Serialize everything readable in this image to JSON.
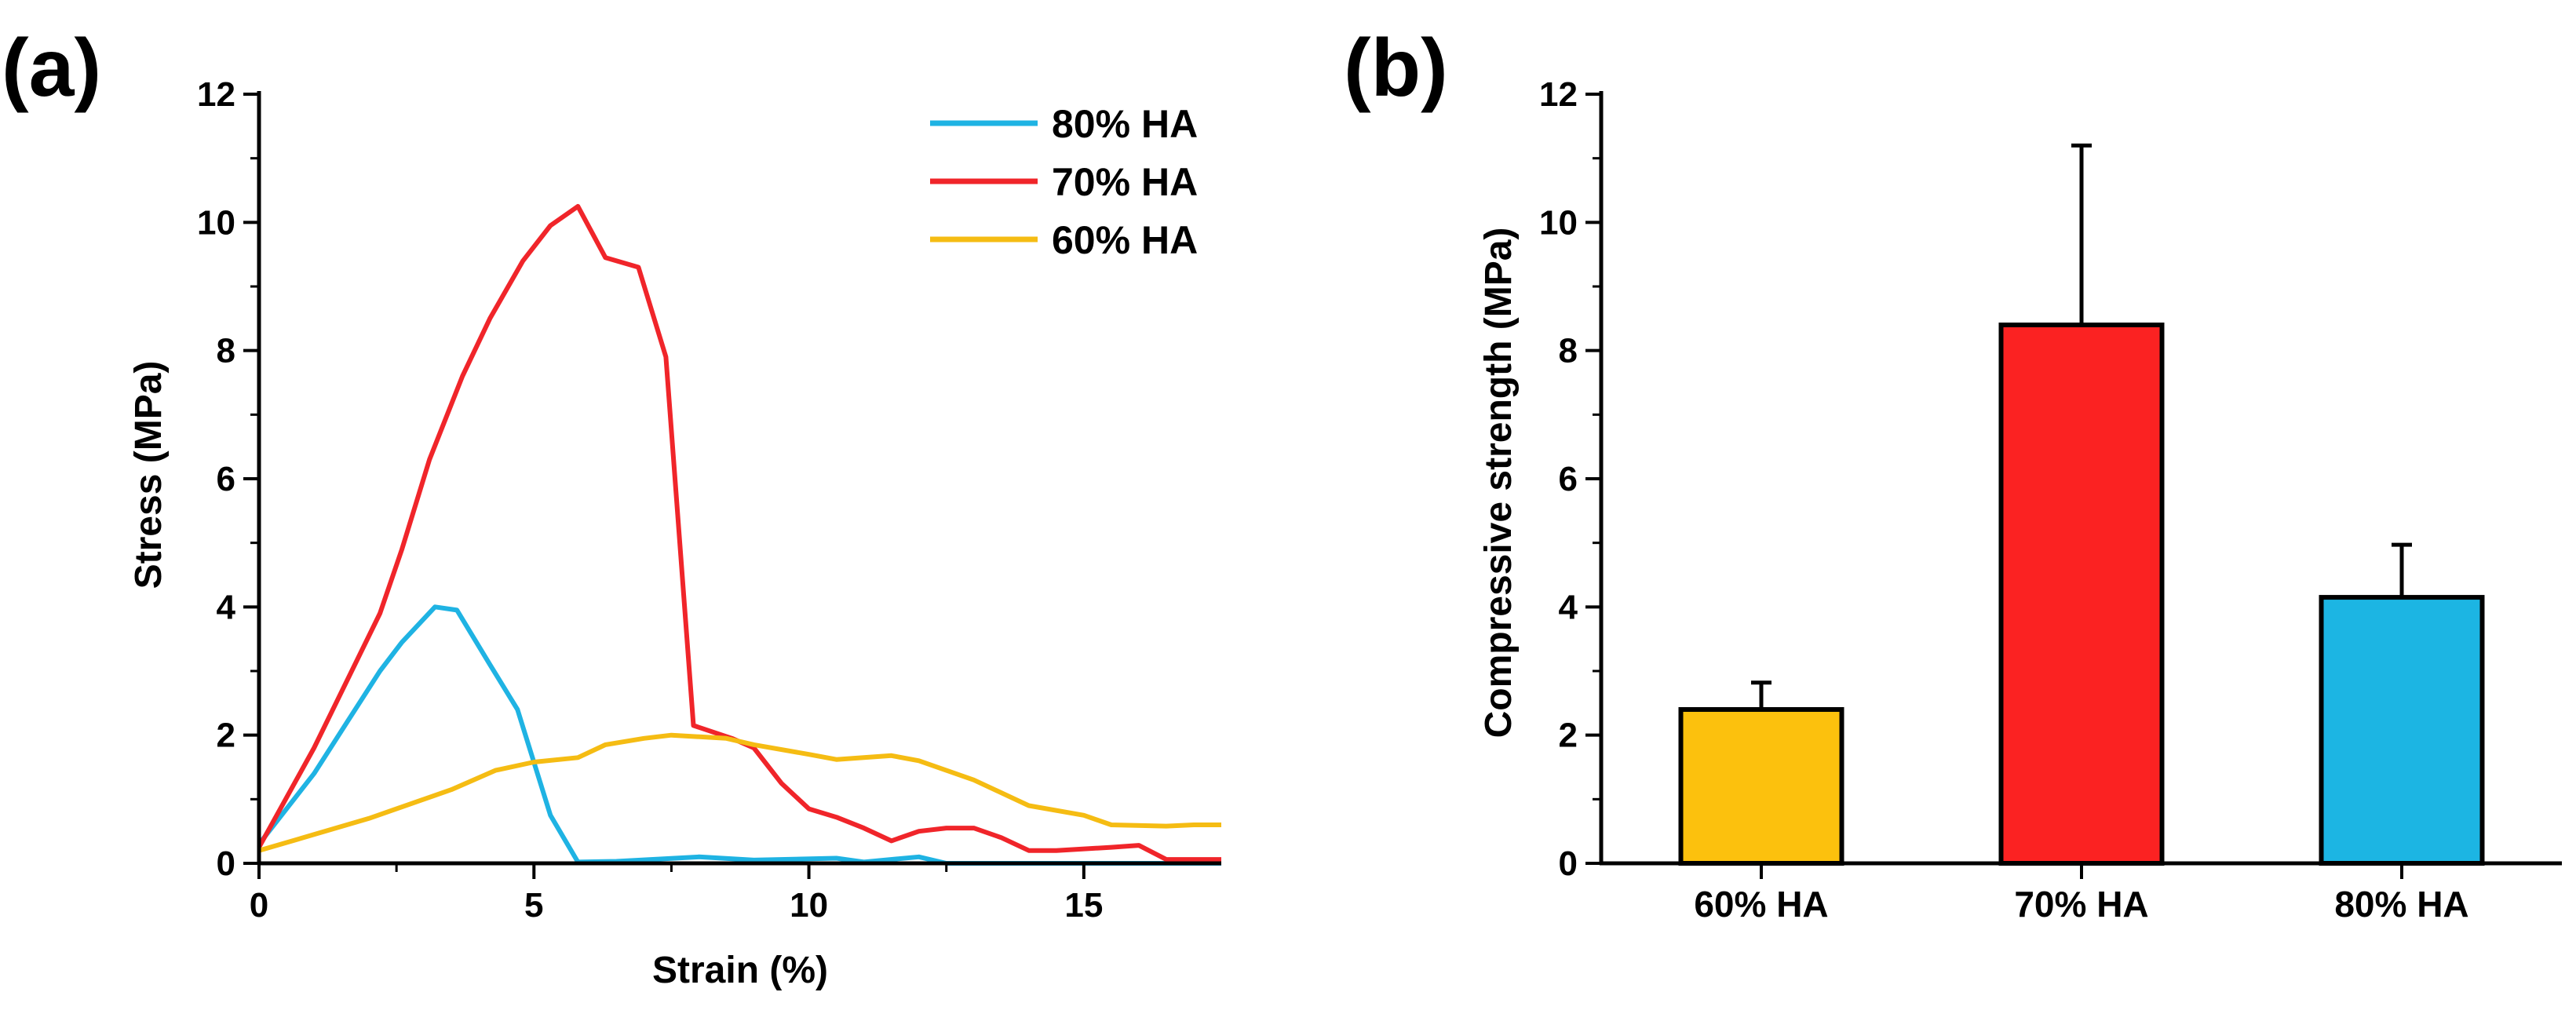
{
  "chart_data": [
    {
      "panel": "(a)",
      "type": "line",
      "title": "",
      "xlabel": "Strain (%)",
      "ylabel": "Stress (MPa)",
      "xlim": [
        0,
        17.5
      ],
      "ylim": [
        0,
        12
      ],
      "xticks": [
        0,
        5,
        10,
        15
      ],
      "yticks": [
        0,
        2,
        4,
        6,
        8,
        10,
        12
      ],
      "legend_position": "top-right",
      "series": [
        {
          "name": "80% HA",
          "color": "#1fb3e3",
          "points": [
            [
              0,
              0.3
            ],
            [
              1.0,
              1.4
            ],
            [
              1.6,
              2.2
            ],
            [
              2.2,
              3.0
            ],
            [
              2.6,
              3.45
            ],
            [
              3.2,
              4.0
            ],
            [
              3.6,
              3.95
            ],
            [
              4.2,
              3.1
            ],
            [
              4.7,
              2.4
            ],
            [
              5.3,
              0.75
            ],
            [
              5.8,
              0.02
            ],
            [
              6.5,
              0.03
            ],
            [
              8.0,
              0.1
            ],
            [
              9.0,
              0.05
            ],
            [
              10.5,
              0.08
            ],
            [
              11.0,
              0.02
            ],
            [
              12.0,
              0.1
            ],
            [
              12.5,
              0.0
            ],
            [
              17.5,
              0.0
            ]
          ]
        },
        {
          "name": "70% HA",
          "color": "#f0252a",
          "points": [
            [
              0,
              0.25
            ],
            [
              1.0,
              1.8
            ],
            [
              2.2,
              3.9
            ],
            [
              2.6,
              4.9
            ],
            [
              3.1,
              6.3
            ],
            [
              3.7,
              7.6
            ],
            [
              4.2,
              8.5
            ],
            [
              4.8,
              9.4
            ],
            [
              5.3,
              9.95
            ],
            [
              5.8,
              10.25
            ],
            [
              6.3,
              9.45
            ],
            [
              6.9,
              9.3
            ],
            [
              7.4,
              7.9
            ],
            [
              7.9,
              2.15
            ],
            [
              8.6,
              1.95
            ],
            [
              9.0,
              1.8
            ],
            [
              9.5,
              1.25
            ],
            [
              10.0,
              0.85
            ],
            [
              10.5,
              0.72
            ],
            [
              11.0,
              0.55
            ],
            [
              11.5,
              0.35
            ],
            [
              12.0,
              0.5
            ],
            [
              12.5,
              0.55
            ],
            [
              13.0,
              0.55
            ],
            [
              13.5,
              0.4
            ],
            [
              14.0,
              0.2
            ],
            [
              14.5,
              0.2
            ],
            [
              15.5,
              0.25
            ],
            [
              16.0,
              0.28
            ],
            [
              16.5,
              0.06
            ],
            [
              17.5,
              0.06
            ]
          ]
        },
        {
          "name": "60% HA",
          "color": "#f5bc13",
          "points": [
            [
              0,
              0.2
            ],
            [
              1.0,
              0.45
            ],
            [
              2.0,
              0.7
            ],
            [
              3.0,
              1.0
            ],
            [
              3.5,
              1.15
            ],
            [
              4.3,
              1.45
            ],
            [
              5.0,
              1.58
            ],
            [
              5.8,
              1.65
            ],
            [
              6.3,
              1.85
            ],
            [
              7.0,
              1.95
            ],
            [
              7.5,
              2.0
            ],
            [
              8.5,
              1.95
            ],
            [
              9.0,
              1.85
            ],
            [
              10.0,
              1.7
            ],
            [
              10.5,
              1.62
            ],
            [
              11.0,
              1.65
            ],
            [
              11.5,
              1.68
            ],
            [
              12.0,
              1.6
            ],
            [
              13.0,
              1.3
            ],
            [
              14.0,
              0.9
            ],
            [
              15.0,
              0.75
            ],
            [
              15.5,
              0.6
            ],
            [
              16.5,
              0.58
            ],
            [
              17.0,
              0.6
            ],
            [
              17.5,
              0.6
            ]
          ]
        }
      ]
    },
    {
      "panel": "(b)",
      "type": "bar",
      "title": "",
      "xlabel": "",
      "ylabel": "Compressive strength (MPa)",
      "ylim": [
        0,
        12
      ],
      "yticks": [
        0,
        2,
        4,
        6,
        8,
        10,
        12
      ],
      "categories": [
        "60% HA",
        "70% HA",
        "80% HA"
      ],
      "values": [
        2.4,
        8.4,
        4.15
      ],
      "errors": [
        0.42,
        2.8,
        0.82
      ],
      "colors": [
        "#fcc10d",
        "#fb2222",
        "#1cb5e3"
      ]
    }
  ]
}
